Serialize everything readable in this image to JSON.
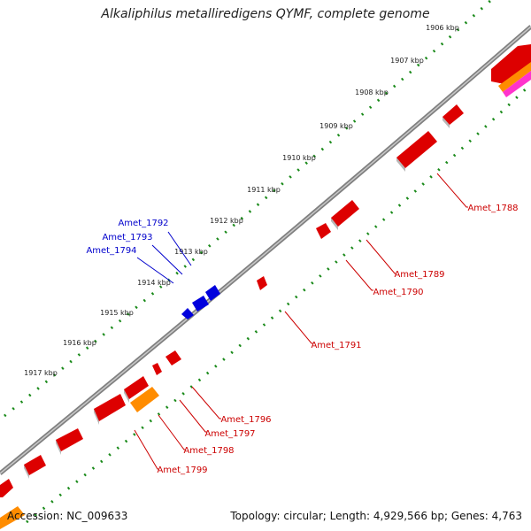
{
  "title": "Alkaliphilus metalliredigens QYMF, complete genome",
  "footer": {
    "accession": "Accession: NC_009633",
    "topology": "Topology: circular; Length: 4,929,566 bp; Genes: 4,763"
  },
  "colors": {
    "backbone": "#808080",
    "tick_dots": "#1a8a1a",
    "forward_gene": "#dd0000",
    "reverse_gene": "#0000dd",
    "rna_gene": "#ff8c00",
    "other_gene": "#ff33cc"
  },
  "scale_ticks": [
    "1906 kbp",
    "1907 kbp",
    "1908 kbp",
    "1909 kbp",
    "1910 kbp",
    "1911 kbp",
    "1912 kbp",
    "1913 kbp",
    "1914 kbp",
    "1915 kbp",
    "1916 kbp",
    "1917 kbp"
  ],
  "gene_labels_outer": [
    "Amet_1792",
    "Amet_1793",
    "Amet_1794"
  ],
  "gene_labels_inner": [
    "Amet_1788",
    "Amet_1789",
    "Amet_1790",
    "Amet_1791",
    "Amet_1796",
    "Amet_1797",
    "Amet_1798",
    "Amet_1799"
  ]
}
